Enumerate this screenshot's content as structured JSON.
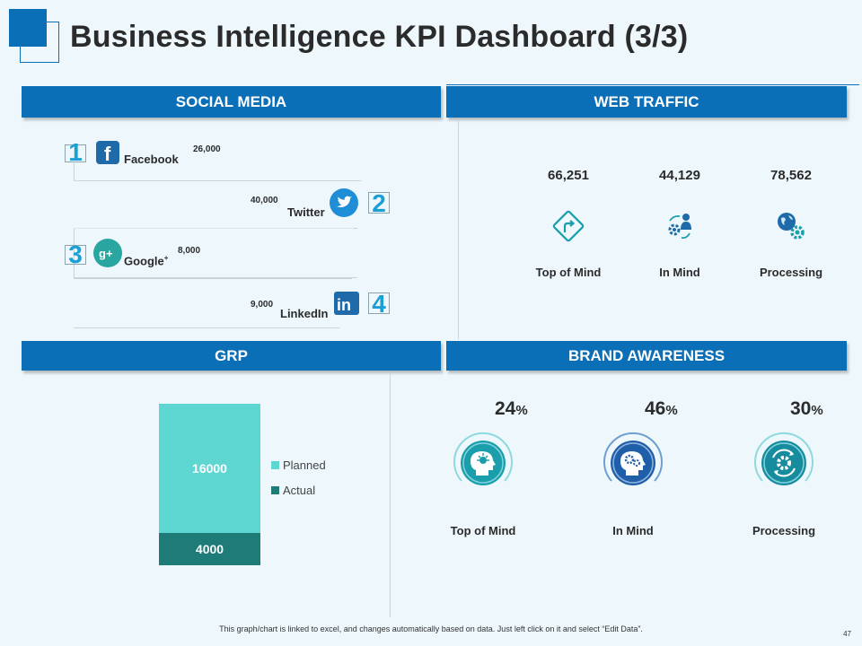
{
  "page": {
    "title": "Business Intelligence KPI Dashboard (3/3)",
    "footer": "This graph/chart is linked to excel, and changes automatically based on data. Just left click on it and select “Edit Data”.",
    "page_number": "47"
  },
  "sections": {
    "social_media": "SOCIAL MEDIA",
    "web_traffic": "WEB TRAFFIC",
    "grp": "GRP",
    "brand_awareness": "BRAND AWARENESS"
  },
  "social_media": {
    "items": [
      {
        "rank": "1",
        "name": "Facebook",
        "value": "26,000",
        "icon": "facebook-icon"
      },
      {
        "rank": "2",
        "name": "Twitter",
        "value": "40,000",
        "icon": "twitter-icon"
      },
      {
        "rank": "3",
        "name": "Google",
        "value": "8,000",
        "icon": "google-plus-icon",
        "superscript": "+"
      },
      {
        "rank": "4",
        "name": "LinkedIn",
        "value": "9,000",
        "icon": "linkedin-icon"
      }
    ]
  },
  "web_traffic": {
    "items": [
      {
        "value": "66,251",
        "label": "Top of Mind",
        "icon": "direction-sign-icon"
      },
      {
        "value": "44,129",
        "label": "In Mind",
        "icon": "person-gears-icon"
      },
      {
        "value": "78,562",
        "label": "Processing",
        "icon": "globe-gear-icon"
      }
    ]
  },
  "brand_awareness": {
    "items": [
      {
        "percent": "24",
        "label": "Top of Mind",
        "icon": "head-idea-icon"
      },
      {
        "percent": "46",
        "label": "In Mind",
        "icon": "head-gears-icon"
      },
      {
        "percent": "30",
        "label": "Processing",
        "icon": "gear-cycle-icon"
      }
    ],
    "percent_sign": "%"
  },
  "colors": {
    "accent": "#0b6fb8",
    "planned": "#5ed6d2",
    "actual": "#1e7b78",
    "teal": "#1a9eab",
    "num_blue": "#1b9fd4"
  },
  "chart_data": {
    "type": "bar",
    "stacked": true,
    "title": "GRP",
    "categories": [
      ""
    ],
    "series": [
      {
        "name": "Actual",
        "values": [
          4000
        ],
        "color": "#1e7b78"
      },
      {
        "name": "Planned",
        "values": [
          16000
        ],
        "color": "#5ed6d2"
      }
    ],
    "legend": [
      "Planned",
      "Actual"
    ],
    "legend_position": "right",
    "data_labels": [
      "4000",
      "16000"
    ],
    "ylim": [
      0,
      20000
    ],
    "grid": false,
    "xlabel": "",
    "ylabel": ""
  }
}
